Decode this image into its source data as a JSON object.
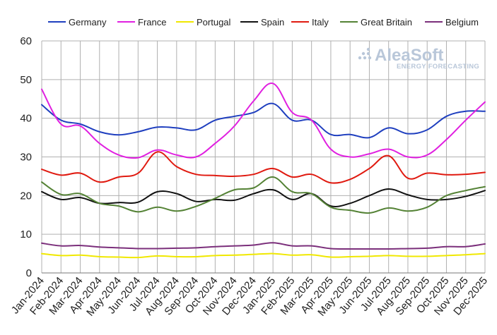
{
  "chart_data": {
    "type": "line",
    "title": "",
    "xlabel": "",
    "ylabel": "",
    "ylim": [
      0,
      60
    ],
    "yticks": [
      0,
      10,
      20,
      30,
      40,
      50,
      60
    ],
    "grid": true,
    "legend_position": "top",
    "categories": [
      "Jan-2024",
      "Feb-2024",
      "Mar-2024",
      "Apr-2024",
      "May-2024",
      "Jun-2024",
      "Jul-2024",
      "Aug-2024",
      "Sep-2024",
      "Oct-2024",
      "Nov-2024",
      "Dec-2024",
      "Jan-2025",
      "Feb-2025",
      "Mar-2025",
      "Apr-2025",
      "May-2025",
      "Jun-2025",
      "Jul-2025",
      "Aug-2025",
      "Sep-2025",
      "Oct-2025",
      "Nov-2025",
      "Dec-2025"
    ],
    "series": [
      {
        "name": "Germany",
        "color": "#1f3fbf",
        "values": [
          43.5,
          39.5,
          38.5,
          36.5,
          35.7,
          36.5,
          37.7,
          37.5,
          37.0,
          39.5,
          40.5,
          41.5,
          43.8,
          39.5,
          39.5,
          35.8,
          35.8,
          35.0,
          37.5,
          36.0,
          37.0,
          40.5,
          41.8,
          41.8
        ]
      },
      {
        "name": "France",
        "color": "#e020e0",
        "values": [
          47.5,
          38.5,
          38.0,
          33.5,
          30.5,
          29.8,
          31.8,
          30.5,
          30.0,
          33.5,
          38.0,
          44.5,
          49.0,
          41.5,
          39.5,
          32.0,
          30.0,
          30.8,
          32.0,
          30.0,
          30.5,
          34.5,
          39.5,
          44.2
        ]
      },
      {
        "name": "Portugal",
        "color": "#f0e800",
        "values": [
          5.0,
          4.5,
          4.6,
          4.2,
          4.1,
          4.0,
          4.4,
          4.2,
          4.2,
          4.5,
          4.6,
          4.8,
          5.0,
          4.6,
          4.7,
          4.1,
          4.2,
          4.3,
          4.5,
          4.3,
          4.3,
          4.5,
          4.7,
          5.0
        ]
      },
      {
        "name": "Spain",
        "color": "#111111",
        "values": [
          21.0,
          19.0,
          19.5,
          18.0,
          18.2,
          18.3,
          21.0,
          20.5,
          18.5,
          19.0,
          18.8,
          20.5,
          21.5,
          19.0,
          20.5,
          17.3,
          18.0,
          20.0,
          21.7,
          20.2,
          19.0,
          19.0,
          19.8,
          21.3
        ]
      },
      {
        "name": "Italy",
        "color": "#e01a10",
        "values": [
          26.8,
          25.3,
          25.8,
          23.5,
          24.8,
          25.8,
          31.3,
          27.5,
          25.5,
          25.2,
          25.0,
          25.5,
          27.0,
          24.8,
          25.5,
          23.3,
          24.2,
          27.0,
          30.3,
          24.5,
          25.8,
          25.4,
          25.5,
          26.0
        ]
      },
      {
        "name": "Great Britain",
        "color": "#548235",
        "values": [
          23.5,
          20.3,
          20.5,
          18.0,
          17.3,
          15.8,
          17.0,
          16.0,
          17.2,
          19.3,
          21.5,
          22.0,
          24.8,
          21.0,
          20.5,
          17.0,
          16.2,
          15.5,
          16.8,
          16.0,
          17.0,
          20.0,
          21.3,
          22.3
        ]
      },
      {
        "name": "Belgium",
        "color": "#7b2f7b",
        "values": [
          7.7,
          7.0,
          7.1,
          6.7,
          6.5,
          6.3,
          6.3,
          6.4,
          6.5,
          6.8,
          7.0,
          7.2,
          7.8,
          7.0,
          7.0,
          6.3,
          6.2,
          6.2,
          6.2,
          6.3,
          6.4,
          6.8,
          6.8,
          7.5
        ]
      }
    ]
  },
  "watermark": {
    "brand": "AleaSoft",
    "tagline": "ENERGY FORECASTING"
  }
}
